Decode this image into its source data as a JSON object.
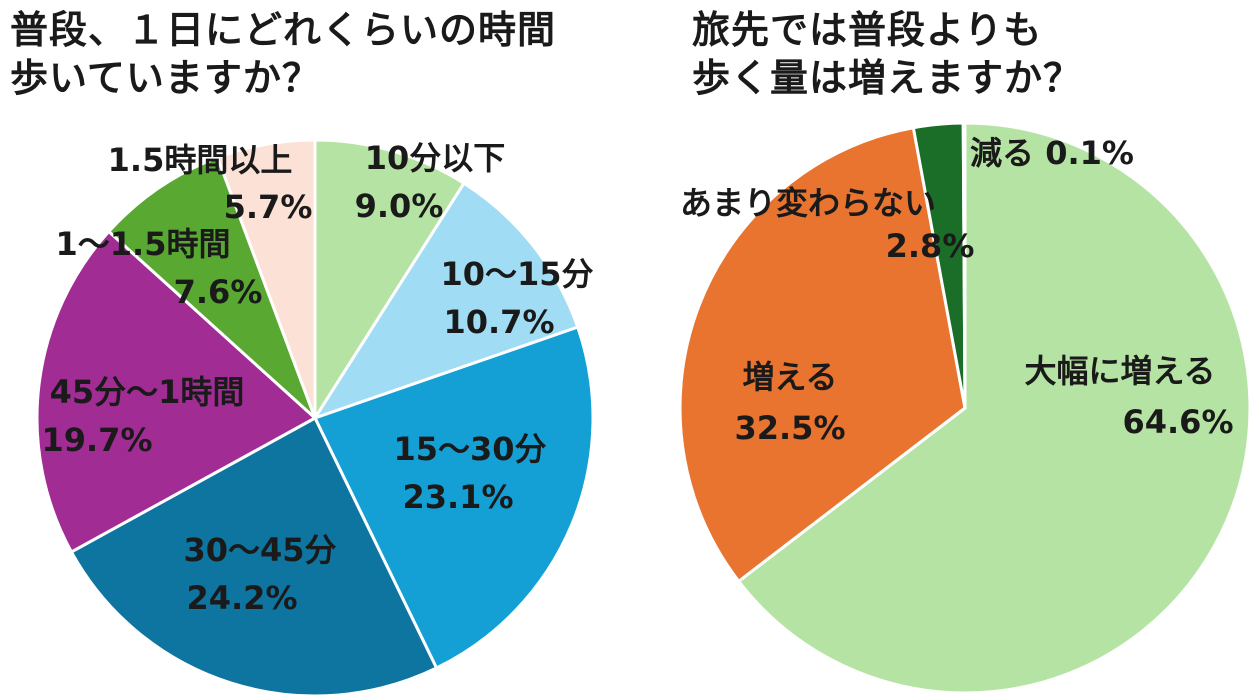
{
  "chart_data": [
    {
      "type": "pie",
      "title": "普段、１日にどれくらいの時間\n歩いていますか？",
      "slices": [
        {
          "label": "10分以下",
          "value": 9.0,
          "value_label": "9.0%",
          "color": "#b5e3a3"
        },
        {
          "label": "10〜15分",
          "value": 10.7,
          "value_label": "10.7%",
          "color": "#a0dcf4"
        },
        {
          "label": "15〜30分",
          "value": 23.1,
          "value_label": "23.1%",
          "color": "#14a0d4"
        },
        {
          "label": "30〜45分",
          "value": 24.2,
          "value_label": "24.2%",
          "color": "#0e74a0"
        },
        {
          "label": "45分〜1時間",
          "value": 19.7,
          "value_label": "19.7%",
          "color": "#a02c94"
        },
        {
          "label": "1〜1.5時間",
          "value": 7.6,
          "value_label": "7.6%",
          "color": "#58a832"
        },
        {
          "label": "1.5時間以上",
          "value": 5.7,
          "value_label": "5.7%",
          "color": "#fbe1d6"
        }
      ]
    },
    {
      "type": "pie",
      "title": "旅先では普段よりも\n歩く量は増えますか？",
      "slices": [
        {
          "label": "大幅に増える",
          "value": 64.6,
          "value_label": "64.6%",
          "color": "#b5e3a3"
        },
        {
          "label": "増える",
          "value": 32.5,
          "value_label": "32.5%",
          "color": "#e87430"
        },
        {
          "label": "あまり変わらない",
          "value": 2.8,
          "value_label": "2.8%",
          "color": "#1a6e28"
        },
        {
          "label": "減る",
          "value": 0.1,
          "value_label": "0.1%",
          "color": "#1a6e28"
        }
      ]
    }
  ]
}
